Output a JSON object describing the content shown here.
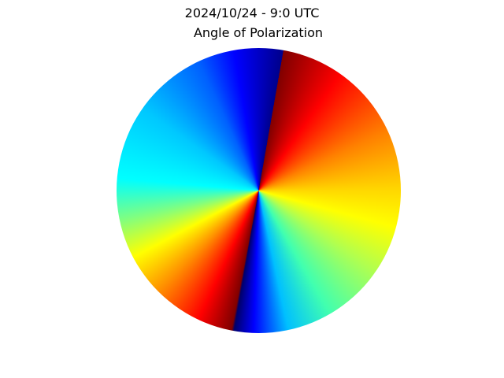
{
  "chart_data": {
    "type": "heatmap",
    "title": "2024/10/24 - 9:0 UTC",
    "subtitle": "Angle of Polarization"
  }
}
